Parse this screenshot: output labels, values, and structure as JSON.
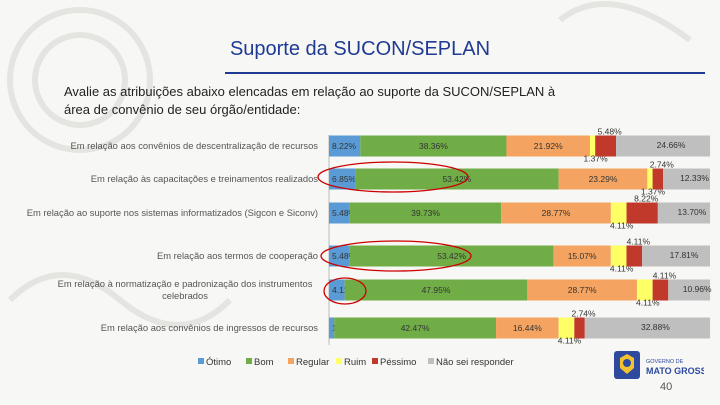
{
  "slide": {
    "title": "Suporte da SUCON/SEPLAN",
    "question": "Avalie as atribuições abaixo elencadas em relação ao suporte da SUCON/SEPLAN à área de convênio de seu órgão/entidade:",
    "page_number": "40",
    "logo": {
      "line1": "GOVERNO DE",
      "line2": "MATO GROSSO"
    }
  },
  "colors": {
    "title": "#1f3a93",
    "Ótimo": "#5b9bd5",
    "Bom": "#70ad47",
    "Regular": "#f4a460",
    "Ruim": "#ffff66",
    "Péssimo": "#c0392b",
    "Não sei responder": "#bfbfbf",
    "highlight": "#cc0000"
  },
  "chart_data": {
    "type": "bar",
    "orientation": "horizontal",
    "stacked": true,
    "percent": true,
    "categories": [
      "Em relação aos convênios de descentralização de recursos",
      "Em relação às capacitações e treinamentos realizados",
      "Em relação ao suporte nos sistemas informatizados (Sigcon e Siconv)",
      "Em relação aos termos de cooperação",
      "Em relação à normatização e padronização dos instrumentos celebrados",
      "Em relação aos convênios de ingressos de recursos"
    ],
    "category_labels": [
      [
        "Em relação aos convênios de descentralização de recursos"
      ],
      [
        "Em relação às capacitações e treinamentos realizados"
      ],
      [
        "Em relação ao suporte nos sistemas informatizados (Sigcon e Siconv)"
      ],
      [
        "Em relação aos termos de cooperação"
      ],
      [
        "Em relação à normatização e padronização dos instrumentos",
        "celebrados"
      ],
      [
        "Em relação aos convênios de ingressos de recursos"
      ]
    ],
    "series": [
      {
        "name": "Ótimo",
        "values": [
          8.22,
          6.85,
          5.48,
          5.48,
          4.11,
          1.37
        ],
        "labels": [
          "8.22%",
          "6.85%",
          "5.48%",
          "5.48%",
          "4.11%",
          "1.37%"
        ]
      },
      {
        "name": "Bom",
        "values": [
          38.36,
          53.42,
          39.73,
          53.42,
          47.95,
          42.47
        ],
        "labels": [
          "38.36%",
          "53.42%",
          "39.73%",
          "53.42%",
          "47.95%",
          "42.47%"
        ]
      },
      {
        "name": "Regular",
        "values": [
          21.92,
          23.29,
          28.77,
          15.07,
          28.77,
          16.44
        ],
        "labels": [
          "21.92%",
          "23.29%",
          "28.77%",
          "15.07%",
          "28.77%",
          "16.44%"
        ]
      },
      {
        "name": "Ruim",
        "values": [
          1.37,
          1.37,
          4.11,
          4.11,
          4.11,
          4.11
        ],
        "labels": [
          "1.37%",
          "1.37%",
          "4.11%",
          "4.11%",
          "4.11%",
          "4.11%"
        ]
      },
      {
        "name": "Péssimo",
        "values": [
          5.48,
          2.74,
          8.22,
          4.11,
          4.11,
          2.74
        ],
        "labels": [
          "5.48%",
          "2.74%",
          "8.22%",
          "4.11%",
          "4.11%",
          "2.74%"
        ]
      },
      {
        "name": "Não sei responder",
        "values": [
          24.66,
          12.33,
          13.7,
          17.81,
          10.96,
          32.88
        ],
        "labels": [
          "24.66%",
          "12.33%",
          "13.70%",
          "17.81%",
          "10.96%",
          "32.88%"
        ]
      }
    ],
    "highlighted_values": [
      "6.85% / 53.42% (capacitações e treinamentos)",
      "5.48% / 53.42% (termos de cooperação)",
      "4.11% (normatização e padronização)"
    ],
    "legend": [
      "Ótimo",
      "Bom",
      "Regular",
      "Ruim",
      "Péssimo",
      "Não sei responder"
    ],
    "legend_position": "bottom",
    "xlim": [
      0,
      100
    ]
  }
}
